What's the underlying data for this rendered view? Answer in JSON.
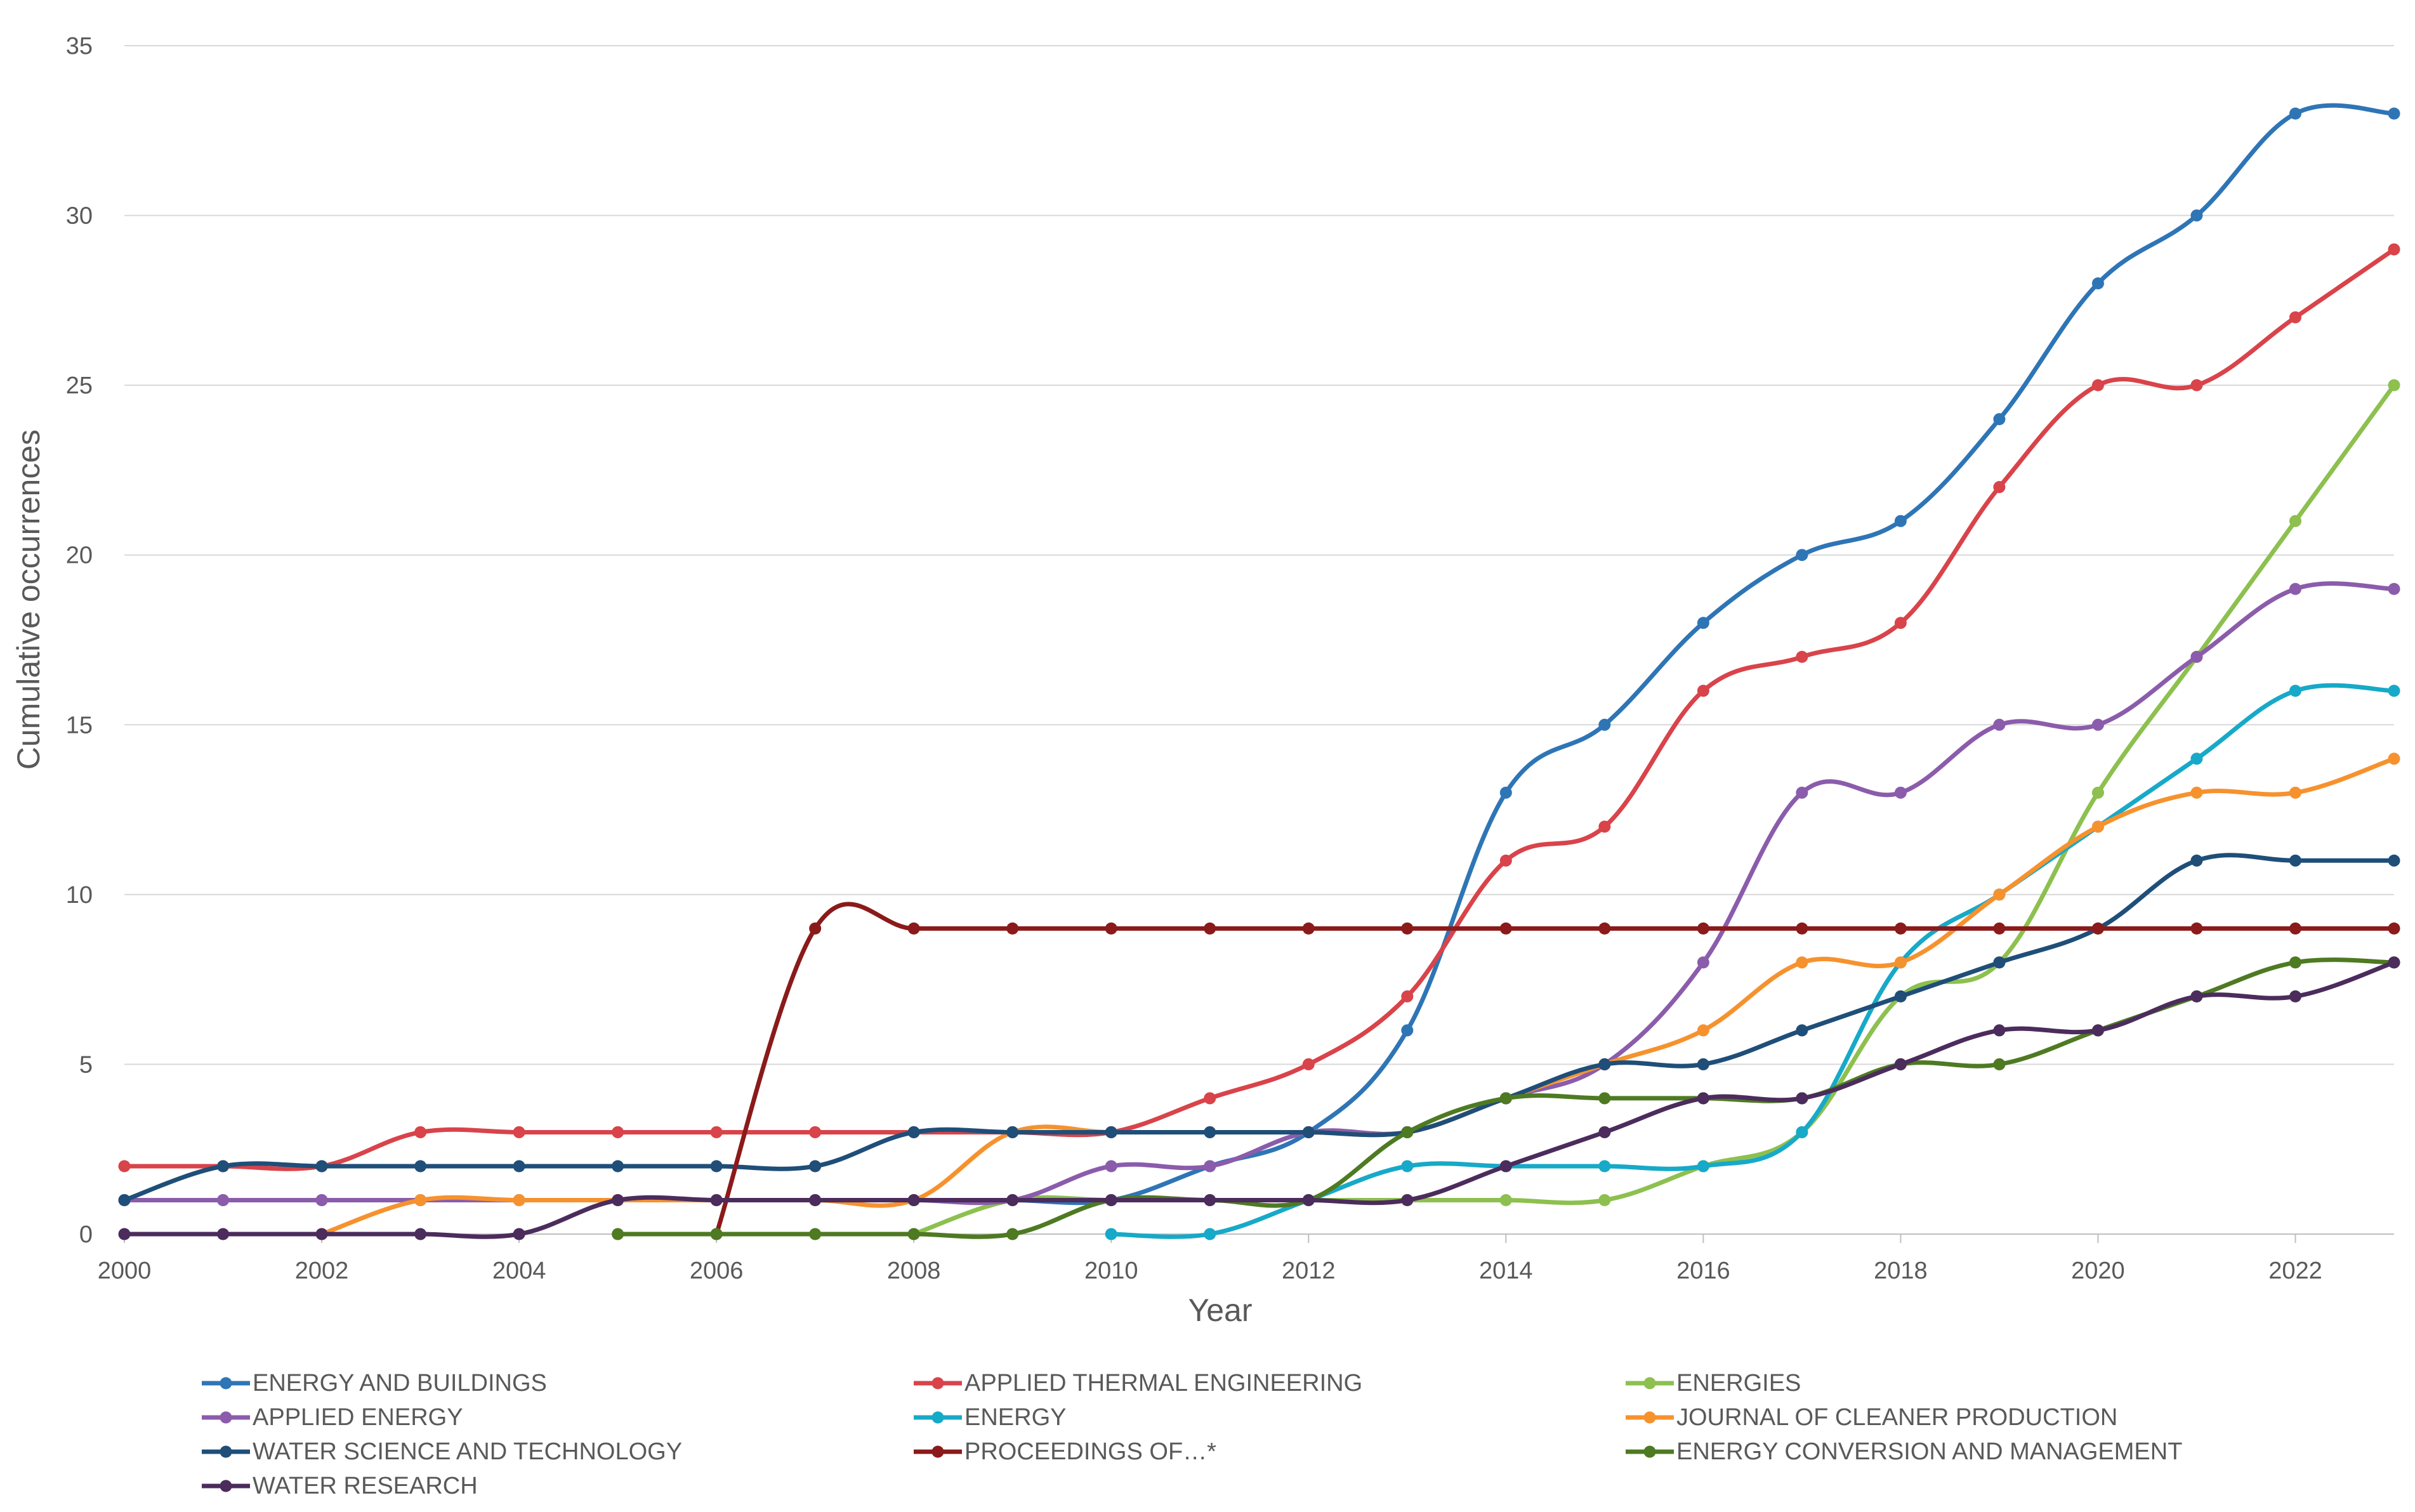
{
  "chart_data": {
    "type": "line",
    "title": "",
    "xlabel": "Year",
    "ylabel": "Cumulative occurrences",
    "xlim": [
      2000,
      2023
    ],
    "ylim": [
      0,
      35
    ],
    "x_ticks": [
      "2000",
      "2002",
      "2004",
      "2006",
      "2008",
      "2010",
      "2012",
      "2014",
      "2016",
      "2018",
      "2020",
      "2022"
    ],
    "y_ticks": [
      "0",
      "5",
      "10",
      "15",
      "20",
      "25",
      "30",
      "35"
    ],
    "grid": "horizontal",
    "legend_position": "bottom",
    "x": [
      2000,
      2001,
      2002,
      2003,
      2004,
      2005,
      2006,
      2007,
      2008,
      2009,
      2010,
      2011,
      2012,
      2013,
      2014,
      2015,
      2016,
      2017,
      2018,
      2019,
      2020,
      2021,
      2022,
      2023
    ],
    "series": [
      {
        "name": "ENERGY AND BUILDINGS",
        "color": "#2E75B6",
        "values": [
          1,
          1,
          1,
          1,
          1,
          1,
          1,
          1,
          1,
          1,
          1,
          2,
          3,
          6,
          13,
          15,
          18,
          20,
          21,
          24,
          28,
          30,
          33,
          33
        ]
      },
      {
        "name": "APPLIED THERMAL ENGINEERING",
        "color": "#D9434A",
        "values": [
          2,
          2,
          2,
          3,
          3,
          3,
          3,
          3,
          3,
          3,
          3,
          4,
          5,
          7,
          11,
          12,
          16,
          17,
          18,
          22,
          25,
          25,
          27,
          29
        ]
      },
      {
        "name": "ENERGIES",
        "color": "#8DC04F",
        "values": [
          null,
          null,
          null,
          null,
          null,
          null,
          null,
          null,
          0,
          1,
          1,
          1,
          1,
          1,
          1,
          1,
          2,
          3,
          7,
          8,
          13,
          17,
          21,
          25
        ]
      },
      {
        "name": "APPLIED ENERGY",
        "color": "#8B5CAB",
        "values": [
          1,
          1,
          1,
          1,
          1,
          1,
          1,
          1,
          1,
          1,
          2,
          2,
          3,
          3,
          4,
          5,
          8,
          13,
          13,
          15,
          15,
          17,
          19,
          19
        ]
      },
      {
        "name": "ENERGY",
        "color": "#17A9C8",
        "values": [
          null,
          null,
          null,
          null,
          null,
          null,
          null,
          null,
          null,
          null,
          0,
          0,
          1,
          2,
          2,
          2,
          2,
          3,
          8,
          10,
          12,
          14,
          16,
          16
        ]
      },
      {
        "name": "JOURNAL OF CLEANER PRODUCTION",
        "color": "#F6922E",
        "values": [
          null,
          null,
          0,
          1,
          1,
          1,
          1,
          1,
          1,
          3,
          3,
          3,
          3,
          3,
          4,
          5,
          6,
          8,
          8,
          10,
          12,
          13,
          13,
          14
        ]
      },
      {
        "name": "WATER SCIENCE AND TECHNOLOGY",
        "color": "#1F4E79",
        "values": [
          1,
          2,
          2,
          2,
          2,
          2,
          2,
          2,
          3,
          3,
          3,
          3,
          3,
          3,
          4,
          5,
          5,
          6,
          7,
          8,
          9,
          11,
          11,
          11
        ]
      },
      {
        "name": "PROCEEDINGS OF…*",
        "color": "#8B1A1A",
        "values": [
          null,
          null,
          null,
          null,
          null,
          null,
          0,
          9,
          9,
          9,
          9,
          9,
          9,
          9,
          9,
          9,
          9,
          9,
          9,
          9,
          9,
          9,
          9,
          9
        ]
      },
      {
        "name": "ENERGY CONVERSION AND MANAGEMENT",
        "color": "#4E7A22",
        "values": [
          null,
          null,
          null,
          null,
          null,
          0,
          0,
          0,
          0,
          0,
          1,
          1,
          1,
          3,
          4,
          4,
          4,
          4,
          5,
          5,
          6,
          7,
          8,
          8
        ]
      },
      {
        "name": "WATER RESEARCH",
        "color": "#4B2C5C",
        "values": [
          0,
          0,
          0,
          0,
          0,
          1,
          1,
          1,
          1,
          1,
          1,
          1,
          1,
          1,
          2,
          3,
          4,
          4,
          5,
          6,
          6,
          7,
          7,
          8
        ]
      }
    ]
  }
}
